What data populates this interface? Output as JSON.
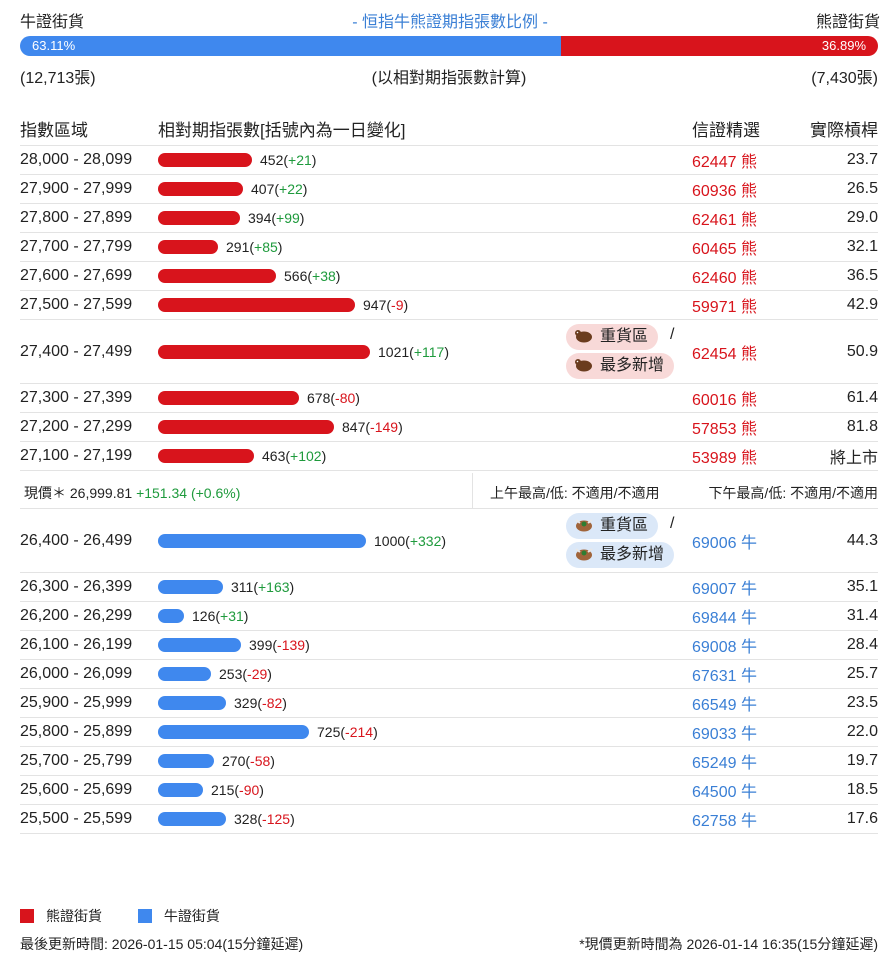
{
  "summary": {
    "bull_label": "牛證街貨",
    "title": "- 恒指牛熊證期指張數比例 -",
    "bear_label": "熊證街貨",
    "bull_pct": "63.11%",
    "bear_pct": "36.89%",
    "bull_ratio": 0.6311,
    "bull_count": "(12,713張)",
    "basis_note": "(以相對期指張數計算)",
    "bear_count": "(7,430張)"
  },
  "header": {
    "range": "指數區域",
    "contracts": "相對期指張數[括號內為一日變化]",
    "pick": "信證精選",
    "strike": "實際槓桿"
  },
  "colors": {
    "bear": "#d8141c",
    "bull": "#3f88ee",
    "positive": "#1e9a3c",
    "title": "#3a7fd5"
  },
  "bear_rows": [
    {
      "range": "28,000 - 28,099",
      "qty": "452",
      "change": "+21",
      "bar_value": 452,
      "code": "62447 熊",
      "leverage": "23.7",
      "tags": false
    },
    {
      "range": "27,900 - 27,999",
      "qty": "407",
      "change": "+22",
      "bar_value": 407,
      "code": "60936 熊",
      "leverage": "26.5",
      "tags": false
    },
    {
      "range": "27,800 - 27,899",
      "qty": "394",
      "change": "+99",
      "bar_value": 394,
      "code": "62461 熊",
      "leverage": "29.0",
      "tags": false
    },
    {
      "range": "27,700 - 27,799",
      "qty": "291",
      "change": "+85",
      "bar_value": 291,
      "code": "60465 熊",
      "leverage": "32.1",
      "tags": false
    },
    {
      "range": "27,600 - 27,699",
      "qty": "566",
      "change": "+38",
      "bar_value": 566,
      "code": "62460 熊",
      "leverage": "36.5",
      "tags": false
    },
    {
      "range": "27,500 - 27,599",
      "qty": "947",
      "change": "-9",
      "bar_value": 947,
      "code": "59971 熊",
      "leverage": "42.9",
      "tags": false
    },
    {
      "range": "27,400 - 27,499",
      "qty": "1021",
      "change": "+117",
      "bar_value": 1021,
      "code": "62454 熊",
      "leverage": "50.9",
      "tags": true
    },
    {
      "range": "27,300 - 27,399",
      "qty": "678",
      "change": "-80",
      "bar_value": 678,
      "code": "60016 熊",
      "leverage": "61.4",
      "tags": false
    },
    {
      "range": "27,200 - 27,299",
      "qty": "847",
      "change": "-149",
      "bar_value": 847,
      "code": "57853 熊",
      "leverage": "81.8",
      "tags": false
    },
    {
      "range": "27,100 - 27,199",
      "qty": "463",
      "change": "+102",
      "bar_value": 463,
      "code": "53989 熊",
      "leverage": "將上市",
      "tags": false
    }
  ],
  "tag_labels": {
    "heavy": "重貨區",
    "slash": "/",
    "newest": "最多新增"
  },
  "price": {
    "now": "現價＊ 26,999.81",
    "change": "+151.34 (+0.6%)",
    "am": "上午最高/低: 不適用/不適用",
    "pm": "下午最高/低: 不適用/不適用"
  },
  "bull_rows": [
    {
      "range": "26,400 - 26,499",
      "qty": "1000",
      "change": "+332",
      "bar_value": 1000,
      "code": "69006 牛",
      "leverage": "44.3",
      "tags": true
    },
    {
      "range": "26,300 - 26,399",
      "qty": "311",
      "change": "+163",
      "bar_value": 311,
      "code": "69007 牛",
      "leverage": "35.1",
      "tags": false
    },
    {
      "range": "26,200 - 26,299",
      "qty": "126",
      "change": "+31",
      "bar_value": 126,
      "code": "69844 牛",
      "leverage": "31.4",
      "tags": false
    },
    {
      "range": "26,100 - 26,199",
      "qty": "399",
      "change": "-139",
      "bar_value": 399,
      "code": "69008 牛",
      "leverage": "28.4",
      "tags": false
    },
    {
      "range": "26,000 - 26,099",
      "qty": "253",
      "change": "-29",
      "bar_value": 253,
      "code": "67631 牛",
      "leverage": "25.7",
      "tags": false
    },
    {
      "range": "25,900 - 25,999",
      "qty": "329",
      "change": "-82",
      "bar_value": 329,
      "code": "66549 牛",
      "leverage": "23.5",
      "tags": false
    },
    {
      "range": "25,800 - 25,899",
      "qty": "725",
      "change": "-214",
      "bar_value": 725,
      "code": "69033 牛",
      "leverage": "22.0",
      "tags": false
    },
    {
      "range": "25,700 - 25,799",
      "qty": "270",
      "change": "-58",
      "bar_value": 270,
      "code": "65249 牛",
      "leverage": "19.7",
      "tags": false
    },
    {
      "range": "25,600 - 25,699",
      "qty": "215",
      "change": "-90",
      "bar_value": 215,
      "code": "64500 牛",
      "leverage": "18.5",
      "tags": false
    },
    {
      "range": "25,500 - 25,599",
      "qty": "328",
      "change": "-125",
      "bar_value": 328,
      "code": "62758 牛",
      "leverage": "17.6",
      "tags": false
    }
  ],
  "legend": {
    "bear": "熊證街貨",
    "bull": "牛證街貨"
  },
  "footer": {
    "updated": "最後更新時間: 2026-01-15 05:04(15分鐘延遲)",
    "price_updated": "*現價更新時間為 2026-01-14 16:35(15分鐘延遲)"
  }
}
